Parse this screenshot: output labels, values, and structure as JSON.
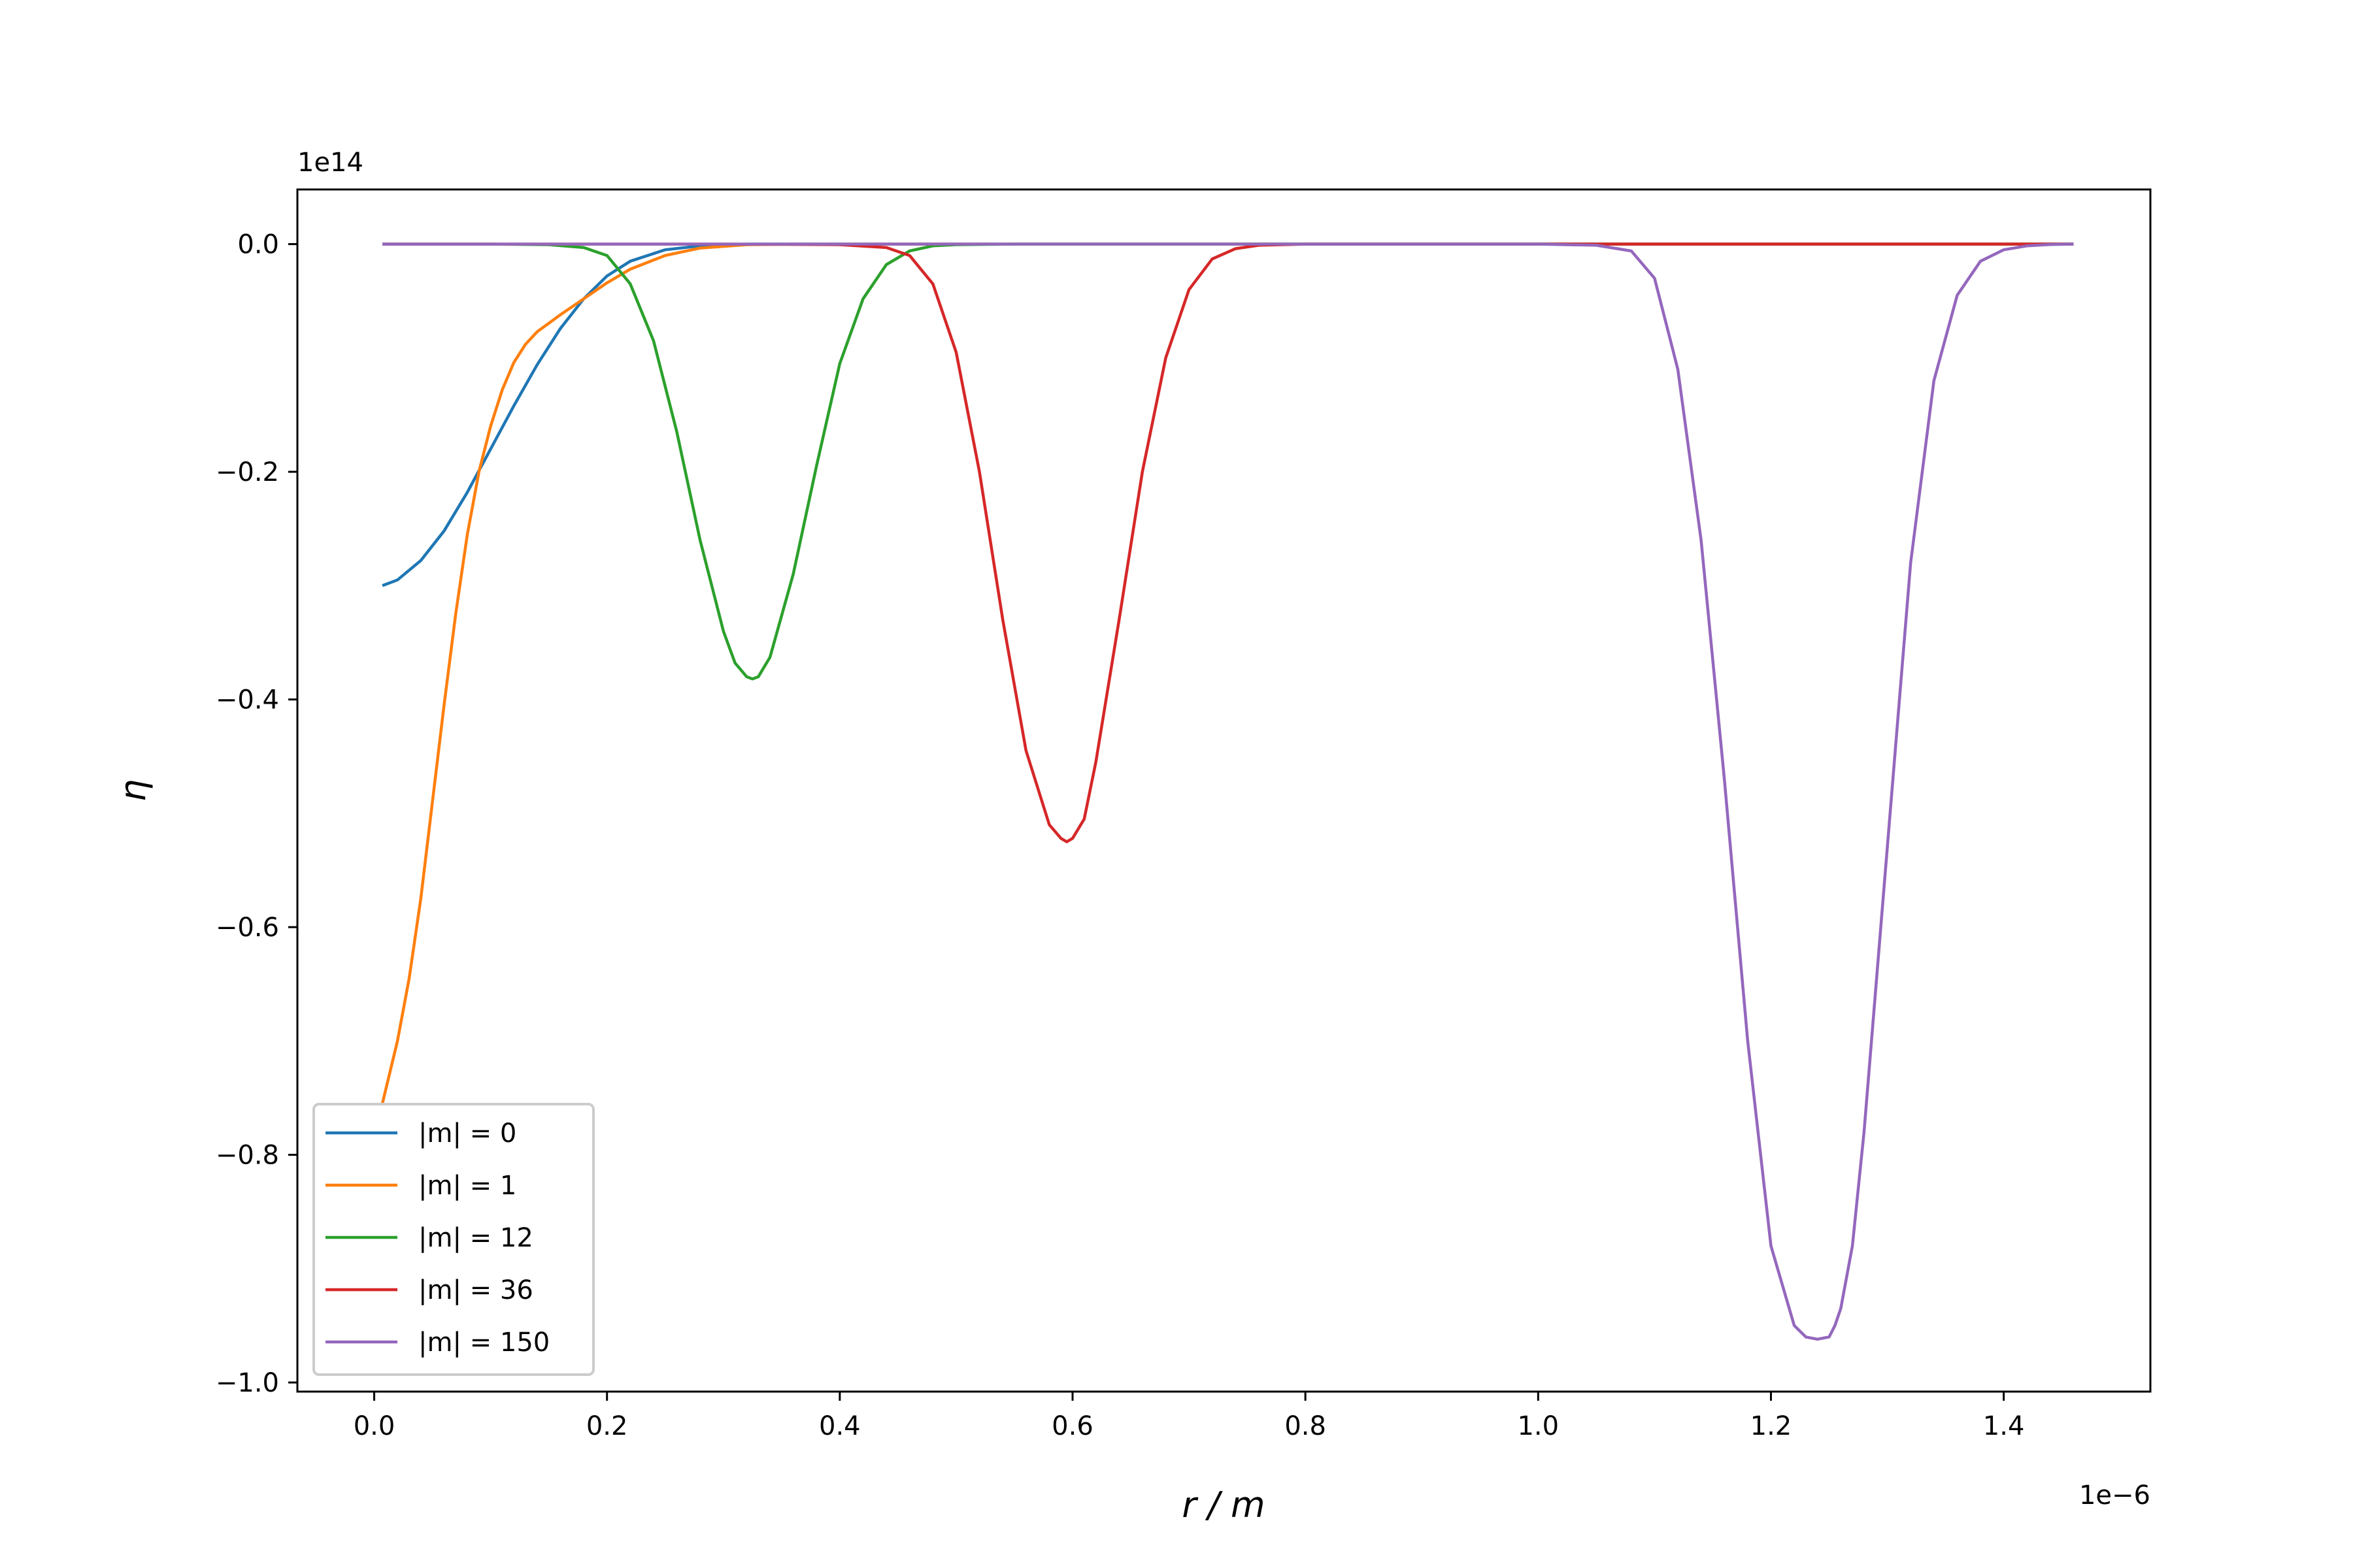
{
  "chart_data": {
    "type": "line",
    "xlabel": "r / m",
    "ylabel": "η",
    "x_offset_text": "1e−6",
    "y_offset_text": "1e14",
    "xlim": [
      -0.066,
      1.526
    ],
    "ylim": [
      -1.008,
      0.048
    ],
    "xticks": [
      0.0,
      0.2,
      0.4,
      0.6,
      0.8,
      1.0,
      1.2,
      1.4
    ],
    "xtick_labels": [
      "0.0",
      "0.2",
      "0.4",
      "0.6",
      "0.8",
      "1.0",
      "1.2",
      "1.4"
    ],
    "yticks": [
      0.0,
      -0.2,
      -0.4,
      -0.6,
      -0.8,
      -1.0
    ],
    "ytick_labels": [
      "0.0",
      "−0.2",
      "−0.4",
      "−0.6",
      "−0.8",
      "−1.0"
    ],
    "grid": false,
    "legend_position": "lower-left",
    "series": [
      {
        "name": "|m| = 0",
        "color": "#1f77b4",
        "x": [
          0.007,
          0.02,
          0.04,
          0.06,
          0.08,
          0.1,
          0.12,
          0.14,
          0.16,
          0.18,
          0.2,
          0.22,
          0.25,
          0.28,
          0.32,
          0.36,
          0.4,
          0.5,
          0.6,
          0.8,
          1.0,
          1.2,
          1.46
        ],
        "y": [
          -0.3,
          -0.295,
          -0.278,
          -0.252,
          -0.218,
          -0.18,
          -0.142,
          -0.106,
          -0.074,
          -0.048,
          -0.028,
          -0.015,
          -0.005,
          -0.0015,
          0.0,
          0.0,
          0.0,
          0.0,
          0.0,
          0.0,
          0.0,
          0.0,
          0.0
        ]
      },
      {
        "name": "|m| = 1",
        "color": "#ff7f0e",
        "x": [
          0.007,
          0.02,
          0.03,
          0.04,
          0.05,
          0.06,
          0.07,
          0.08,
          0.09,
          0.1,
          0.11,
          0.12,
          0.13,
          0.14,
          0.16,
          0.18,
          0.2,
          0.22,
          0.25,
          0.28,
          0.32,
          0.36,
          0.4,
          0.5,
          0.6,
          0.8,
          1.0,
          1.2,
          1.46
        ],
        "y": [
          -0.755,
          -0.7,
          -0.645,
          -0.575,
          -0.49,
          -0.405,
          -0.325,
          -0.255,
          -0.2,
          -0.16,
          -0.128,
          -0.104,
          -0.088,
          -0.077,
          -0.062,
          -0.048,
          -0.034,
          -0.022,
          -0.01,
          -0.0035,
          -0.0005,
          0.0,
          0.0,
          0.0,
          0.0,
          0.0,
          0.0,
          0.0,
          0.0
        ]
      },
      {
        "name": "|m| = 12",
        "color": "#2ca02c",
        "x": [
          0.007,
          0.1,
          0.15,
          0.18,
          0.2,
          0.22,
          0.24,
          0.26,
          0.28,
          0.3,
          0.31,
          0.32,
          0.325,
          0.33,
          0.34,
          0.36,
          0.38,
          0.4,
          0.42,
          0.44,
          0.46,
          0.48,
          0.5,
          0.55,
          0.6,
          0.8,
          1.0,
          1.2,
          1.46
        ],
        "y": [
          0.0,
          0.0,
          -0.0005,
          -0.003,
          -0.01,
          -0.035,
          -0.085,
          -0.165,
          -0.26,
          -0.34,
          -0.368,
          -0.38,
          -0.382,
          -0.38,
          -0.363,
          -0.29,
          -0.195,
          -0.105,
          -0.048,
          -0.018,
          -0.006,
          -0.0015,
          -0.0005,
          0.0,
          0.0,
          0.0,
          0.0,
          0.0,
          0.0
        ]
      },
      {
        "name": "|m| = 36",
        "color": "#d62728",
        "x": [
          0.007,
          0.3,
          0.4,
          0.44,
          0.46,
          0.48,
          0.5,
          0.52,
          0.54,
          0.56,
          0.58,
          0.59,
          0.595,
          0.6,
          0.61,
          0.62,
          0.64,
          0.66,
          0.68,
          0.7,
          0.72,
          0.74,
          0.76,
          0.8,
          0.9,
          1.0,
          1.2,
          1.46
        ],
        "y": [
          0.0,
          0.0,
          -0.0005,
          -0.003,
          -0.01,
          -0.035,
          -0.095,
          -0.2,
          -0.33,
          -0.445,
          -0.51,
          -0.522,
          -0.525,
          -0.522,
          -0.505,
          -0.455,
          -0.33,
          -0.2,
          -0.1,
          -0.04,
          -0.013,
          -0.004,
          -0.001,
          0.0,
          0.0,
          0.0,
          0.0,
          0.0
        ]
      },
      {
        "name": "|m| = 150",
        "color": "#9467bd",
        "x": [
          0.007,
          0.5,
          1.0,
          1.05,
          1.08,
          1.1,
          1.12,
          1.14,
          1.16,
          1.18,
          1.2,
          1.22,
          1.23,
          1.24,
          1.245,
          1.25,
          1.255,
          1.26,
          1.27,
          1.28,
          1.3,
          1.32,
          1.34,
          1.36,
          1.38,
          1.4,
          1.42,
          1.44,
          1.46
        ],
        "y": [
          0.0,
          0.0,
          0.0,
          -0.001,
          -0.006,
          -0.03,
          -0.11,
          -0.26,
          -0.47,
          -0.7,
          -0.88,
          -0.95,
          -0.96,
          -0.962,
          -0.961,
          -0.96,
          -0.95,
          -0.935,
          -0.88,
          -0.78,
          -0.53,
          -0.28,
          -0.12,
          -0.045,
          -0.015,
          -0.005,
          -0.0015,
          -0.0004,
          0.0
        ]
      }
    ]
  }
}
